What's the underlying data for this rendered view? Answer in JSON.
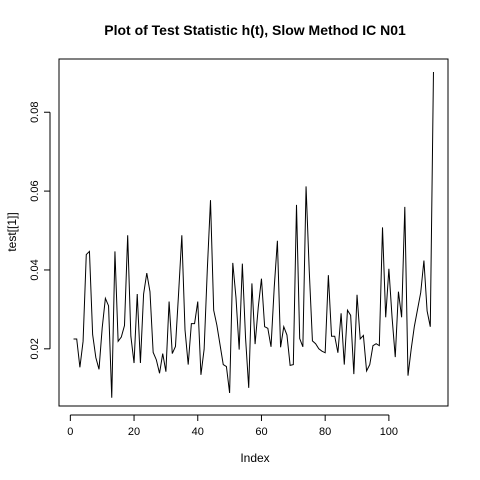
{
  "chart_data": {
    "type": "line",
    "title": "Plot of Test Statistic h(t), Slow Method IC N01",
    "xlabel": "Index",
    "ylabel": "test[[1]]",
    "xlim": [
      -3.56,
      118.56
    ],
    "ylim": [
      0.0055,
      0.0935
    ],
    "x_ticks": [
      0,
      20,
      40,
      60,
      80,
      100
    ],
    "x_tick_labels": [
      "0",
      "20",
      "40",
      "60",
      "80",
      "100"
    ],
    "y_ticks": [
      0.02,
      0.04,
      0.06,
      0.08
    ],
    "y_tick_labels": [
      "0.02",
      "0.04",
      "0.06",
      "0.08"
    ],
    "grid": false,
    "line_color": "#000000",
    "x": [
      1,
      2,
      3,
      4,
      5,
      6,
      7,
      8,
      9,
      10,
      11,
      12,
      13,
      14,
      15,
      16,
      17,
      18,
      19,
      20,
      21,
      22,
      23,
      24,
      25,
      26,
      27,
      28,
      29,
      30,
      31,
      32,
      33,
      34,
      35,
      36,
      37,
      38,
      39,
      40,
      41,
      42,
      43,
      44,
      45,
      46,
      47,
      48,
      49,
      50,
      51,
      52,
      53,
      54,
      55,
      56,
      57,
      58,
      59,
      60,
      61,
      62,
      63,
      64,
      65,
      66,
      67,
      68,
      69,
      70,
      71,
      72,
      73,
      74,
      75,
      76,
      77,
      78,
      79,
      80,
      81,
      82,
      83,
      84,
      85,
      86,
      87,
      88,
      89,
      90,
      91,
      92,
      93,
      94,
      95,
      96,
      97,
      98,
      99,
      100,
      101,
      102,
      103,
      104,
      105,
      106,
      107,
      108,
      109,
      110,
      111,
      112,
      113,
      114
    ],
    "y": [
      0.0225,
      0.0225,
      0.0153,
      0.0219,
      0.0439,
      0.0447,
      0.0236,
      0.0178,
      0.0148,
      0.0253,
      0.0328,
      0.0309,
      0.0076,
      0.0447,
      0.0219,
      0.023,
      0.0259,
      0.0488,
      0.0232,
      0.0164,
      0.0339,
      0.0164,
      0.0339,
      0.0392,
      0.0345,
      0.0191,
      0.0172,
      0.0138,
      0.0188,
      0.0142,
      0.032,
      0.0188,
      0.0206,
      0.0343,
      0.0488,
      0.0248,
      0.016,
      0.0264,
      0.0264,
      0.032,
      0.0134,
      0.0199,
      0.0401,
      0.0577,
      0.0298,
      0.026,
      0.021,
      0.016,
      0.0155,
      0.0088,
      0.0418,
      0.033,
      0.0198,
      0.0416,
      0.0228,
      0.0101,
      0.0366,
      0.0212,
      0.0306,
      0.0378,
      0.0256,
      0.0252,
      0.0205,
      0.0355,
      0.0474,
      0.0204,
      0.0256,
      0.0235,
      0.0158,
      0.016,
      0.0565,
      0.0226,
      0.0205,
      0.0612,
      0.0398,
      0.022,
      0.0213,
      0.02,
      0.0194,
      0.019,
      0.0387,
      0.0232,
      0.0232,
      0.019,
      0.029,
      0.016,
      0.0298,
      0.0285,
      0.0136,
      0.0337,
      0.0225,
      0.0234,
      0.0144,
      0.016,
      0.0208,
      0.0213,
      0.0208,
      0.0508,
      0.028,
      0.0403,
      0.028,
      0.0179,
      0.0345,
      0.028,
      0.056,
      0.0132,
      0.0199,
      0.0257,
      0.03,
      0.0343,
      0.0424,
      0.0296,
      0.0256,
      0.0902
    ]
  }
}
